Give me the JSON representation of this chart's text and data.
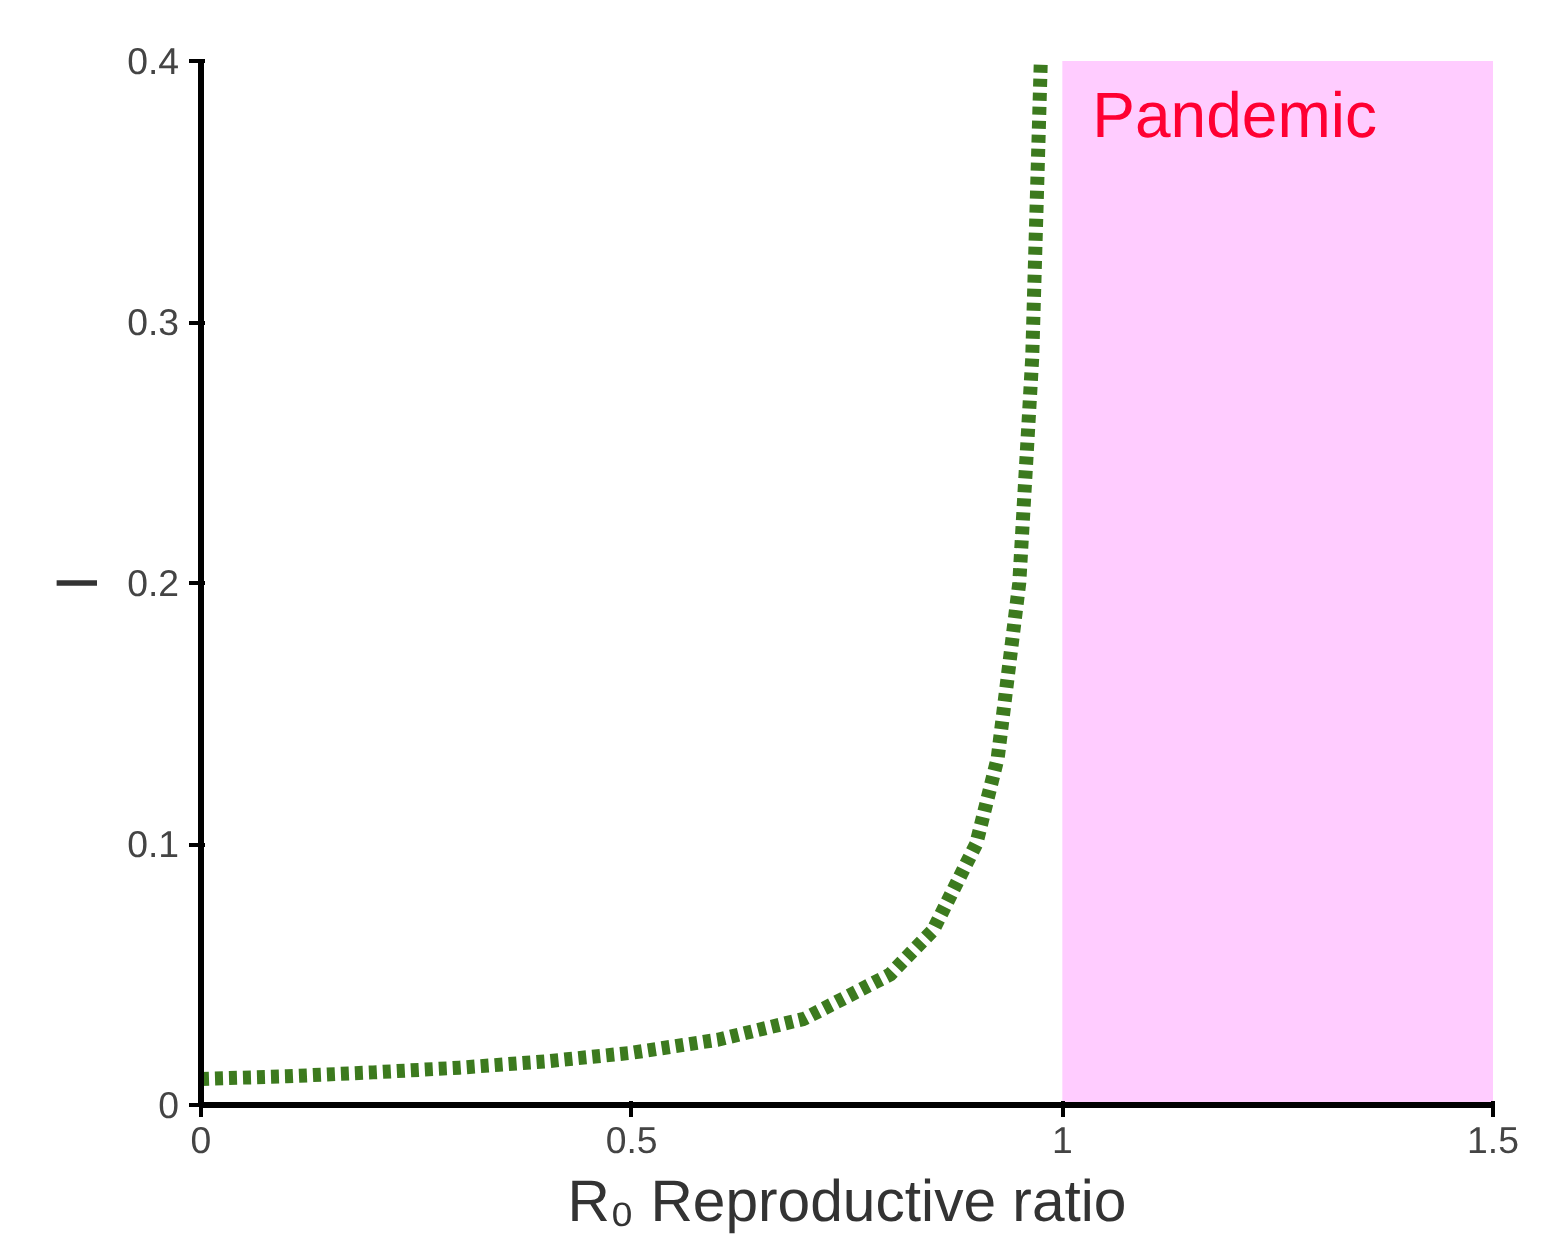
{
  "chart_data": {
    "type": "line",
    "xlabel": "R₀ Reproductive ratio",
    "ylabel": "I",
    "x": [
      0,
      0.1,
      0.2,
      0.3,
      0.4,
      0.5,
      0.6,
      0.7,
      0.8,
      0.85,
      0.9,
      0.925,
      0.95,
      0.965,
      0.975
    ],
    "series": [
      {
        "color": "#3c7a1e",
        "values": [
          0.01,
          0.011,
          0.0125,
          0.0143,
          0.0167,
          0.02,
          0.025,
          0.033,
          0.05,
          0.067,
          0.1,
          0.133,
          0.2,
          0.286,
          0.4
        ]
      }
    ],
    "xlim": [
      0,
      1.5
    ],
    "ylim": [
      0,
      0.4
    ],
    "xticks": [
      0,
      0.5,
      1,
      1.5
    ],
    "yticks": [
      0,
      0.1,
      0.2,
      0.3,
      0.4
    ],
    "bands": [
      {
        "axis": "x",
        "from": 1,
        "to": 1.5,
        "label": "Pandemic",
        "color": "#ffccff"
      }
    ],
    "line_style": "dashed",
    "grid": false
  }
}
